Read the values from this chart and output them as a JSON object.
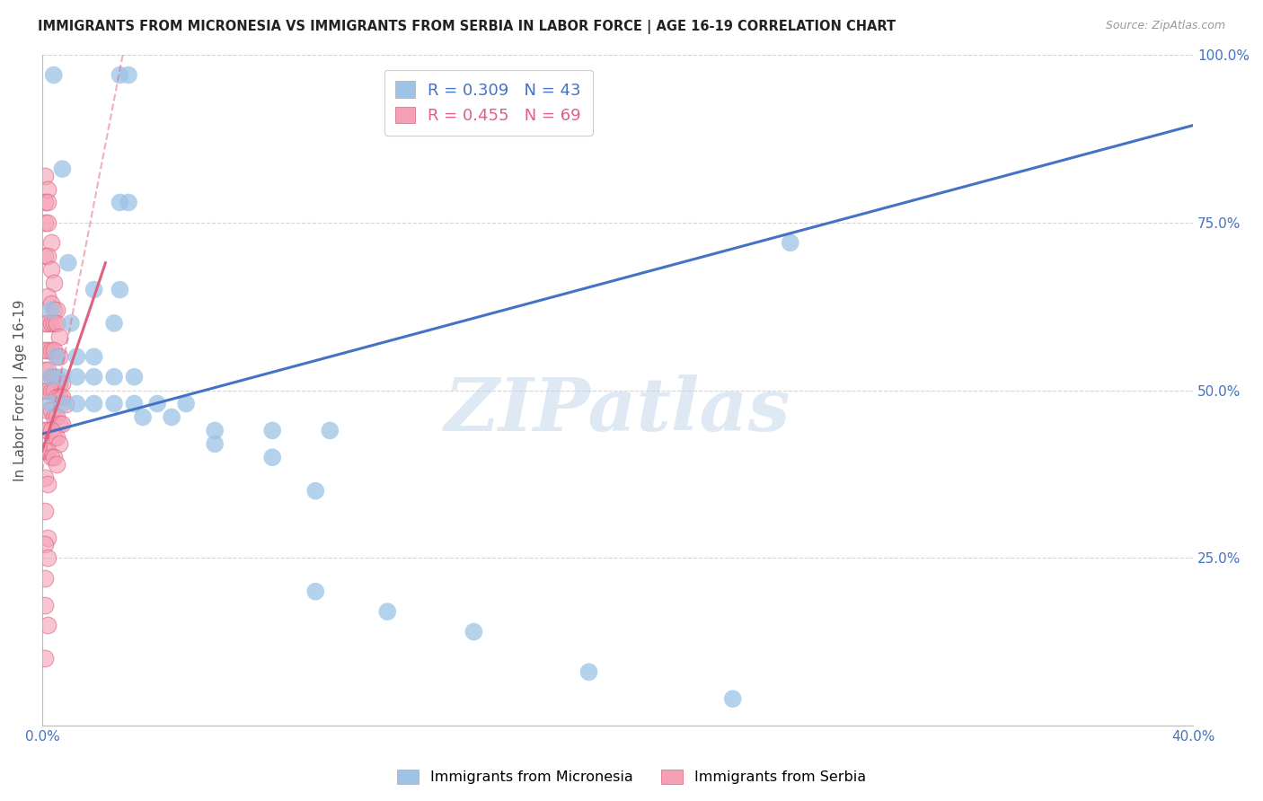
{
  "title": "IMMIGRANTS FROM MICRONESIA VS IMMIGRANTS FROM SERBIA IN LABOR FORCE | AGE 16-19 CORRELATION CHART",
  "source": "Source: ZipAtlas.com",
  "ylabel": "In Labor Force | Age 16-19",
  "xlim": [
    0.0,
    0.4
  ],
  "ylim": [
    0.0,
    1.0
  ],
  "watermark": "ZIPatlas",
  "bg_color": "#ffffff",
  "blue_color": "#4472c4",
  "pink_color": "#e06080",
  "dot_blue": "#9dc3e6",
  "dot_pink": "#f4a0b5",
  "grid_color": "#cccccc",
  "tick_color": "#4472c4",
  "blue_line": [
    0.0,
    0.4,
    0.435,
    0.895
  ],
  "pink_line_solid": [
    0.0,
    0.022,
    0.41,
    0.69
  ],
  "pink_line_dashed": [
    0.0,
    0.028,
    0.38,
    1.0
  ],
  "micronesia_pts": [
    [
      0.004,
      0.97
    ],
    [
      0.027,
      0.97
    ],
    [
      0.03,
      0.97
    ],
    [
      0.007,
      0.83
    ],
    [
      0.027,
      0.78
    ],
    [
      0.03,
      0.78
    ],
    [
      0.009,
      0.69
    ],
    [
      0.018,
      0.65
    ],
    [
      0.027,
      0.65
    ],
    [
      0.003,
      0.62
    ],
    [
      0.01,
      0.6
    ],
    [
      0.025,
      0.6
    ],
    [
      0.005,
      0.55
    ],
    [
      0.012,
      0.55
    ],
    [
      0.018,
      0.55
    ],
    [
      0.003,
      0.52
    ],
    [
      0.007,
      0.52
    ],
    [
      0.012,
      0.52
    ],
    [
      0.018,
      0.52
    ],
    [
      0.025,
      0.52
    ],
    [
      0.032,
      0.52
    ],
    [
      0.003,
      0.48
    ],
    [
      0.007,
      0.48
    ],
    [
      0.012,
      0.48
    ],
    [
      0.018,
      0.48
    ],
    [
      0.025,
      0.48
    ],
    [
      0.032,
      0.48
    ],
    [
      0.04,
      0.48
    ],
    [
      0.05,
      0.48
    ],
    [
      0.035,
      0.46
    ],
    [
      0.045,
      0.46
    ],
    [
      0.06,
      0.44
    ],
    [
      0.08,
      0.44
    ],
    [
      0.1,
      0.44
    ],
    [
      0.06,
      0.42
    ],
    [
      0.08,
      0.4
    ],
    [
      0.26,
      0.72
    ],
    [
      0.095,
      0.35
    ],
    [
      0.095,
      0.2
    ],
    [
      0.12,
      0.17
    ],
    [
      0.15,
      0.14
    ],
    [
      0.19,
      0.08
    ],
    [
      0.24,
      0.04
    ]
  ],
  "serbia_pts": [
    [
      0.001,
      0.82
    ],
    [
      0.002,
      0.8
    ],
    [
      0.001,
      0.78
    ],
    [
      0.002,
      0.78
    ],
    [
      0.001,
      0.75
    ],
    [
      0.002,
      0.75
    ],
    [
      0.003,
      0.72
    ],
    [
      0.001,
      0.7
    ],
    [
      0.002,
      0.7
    ],
    [
      0.003,
      0.68
    ],
    [
      0.004,
      0.66
    ],
    [
      0.002,
      0.64
    ],
    [
      0.003,
      0.63
    ],
    [
      0.004,
      0.62
    ],
    [
      0.005,
      0.62
    ],
    [
      0.001,
      0.6
    ],
    [
      0.002,
      0.6
    ],
    [
      0.003,
      0.6
    ],
    [
      0.004,
      0.6
    ],
    [
      0.005,
      0.6
    ],
    [
      0.006,
      0.58
    ],
    [
      0.001,
      0.56
    ],
    [
      0.002,
      0.56
    ],
    [
      0.003,
      0.56
    ],
    [
      0.004,
      0.56
    ],
    [
      0.005,
      0.55
    ],
    [
      0.006,
      0.55
    ],
    [
      0.001,
      0.53
    ],
    [
      0.002,
      0.53
    ],
    [
      0.003,
      0.52
    ],
    [
      0.004,
      0.52
    ],
    [
      0.005,
      0.52
    ],
    [
      0.006,
      0.51
    ],
    [
      0.007,
      0.51
    ],
    [
      0.001,
      0.5
    ],
    [
      0.002,
      0.5
    ],
    [
      0.003,
      0.5
    ],
    [
      0.004,
      0.5
    ],
    [
      0.005,
      0.49
    ],
    [
      0.006,
      0.49
    ],
    [
      0.007,
      0.49
    ],
    [
      0.008,
      0.48
    ],
    [
      0.002,
      0.47
    ],
    [
      0.003,
      0.47
    ],
    [
      0.004,
      0.46
    ],
    [
      0.005,
      0.46
    ],
    [
      0.006,
      0.45
    ],
    [
      0.007,
      0.45
    ],
    [
      0.001,
      0.44
    ],
    [
      0.002,
      0.44
    ],
    [
      0.003,
      0.44
    ],
    [
      0.004,
      0.43
    ],
    [
      0.005,
      0.43
    ],
    [
      0.006,
      0.42
    ],
    [
      0.001,
      0.41
    ],
    [
      0.002,
      0.41
    ],
    [
      0.003,
      0.4
    ],
    [
      0.004,
      0.4
    ],
    [
      0.005,
      0.39
    ],
    [
      0.001,
      0.37
    ],
    [
      0.002,
      0.36
    ],
    [
      0.001,
      0.32
    ],
    [
      0.002,
      0.28
    ],
    [
      0.001,
      0.27
    ],
    [
      0.002,
      0.25
    ],
    [
      0.001,
      0.22
    ],
    [
      0.001,
      0.18
    ],
    [
      0.002,
      0.15
    ],
    [
      0.001,
      0.1
    ]
  ]
}
